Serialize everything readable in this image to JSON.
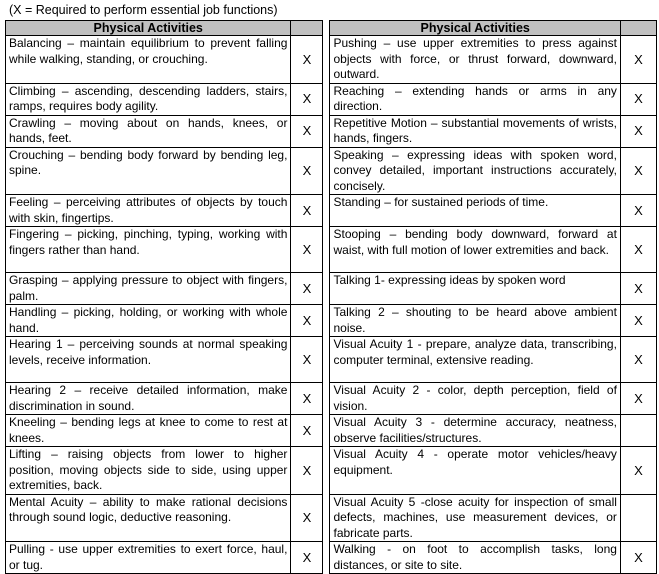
{
  "note": "(X = Required to perform essential job functions)",
  "header": {
    "left": "Physical Activities",
    "right": "Physical Activities"
  },
  "rows": [
    {
      "l": "Balancing – maintain equilibrium to prevent falling while walking, standing, or crouching.",
      "lx": "X",
      "r": "Pushing – use upper extremities to press against objects with force, or thrust forward, downward, outward.",
      "rx": "X"
    },
    {
      "l": "Climbing – ascending, descending ladders, stairs, ramps, requires body agility.",
      "lx": "X",
      "r": "Reaching – extending hands or arms in any direction.",
      "rx": "X"
    },
    {
      "l": "Crawling – moving about on hands, knees, or hands, feet.",
      "lx": "X",
      "r": "Repetitive Motion – substantial movements of wrists, hands, fingers.",
      "rx": "X"
    },
    {
      "l": "Crouching – bending body forward by bending leg, spine.",
      "lx": "X",
      "r": "Speaking – expressing ideas with spoken word, convey detailed, important instructions accurately, concisely.",
      "rx": "X"
    },
    {
      "l": "Feeling – perceiving attributes of objects by touch with skin, fingertips.",
      "lx": "X",
      "r": "Standing – for sustained periods of time.",
      "rx": "X"
    },
    {
      "l": "Fingering – picking, pinching, typing, working with fingers rather than hand.",
      "lx": "X",
      "r": "Stooping – bending body downward, forward at waist, with full motion of lower extremities and back.",
      "rx": "X"
    },
    {
      "l": "Grasping – applying pressure to object with fingers, palm.",
      "lx": "X",
      "r": "Talking 1- expressing ideas by spoken word",
      "rx": "X"
    },
    {
      "l": "Handling – picking, holding, or working with whole hand.",
      "lx": "X",
      "r": "Talking 2 – shouting to be heard above ambient noise.",
      "rx": "X"
    },
    {
      "l": "Hearing 1 – perceiving sounds at normal speaking levels, receive information.",
      "lx": "X",
      "r": "Visual Acuity 1 - prepare, analyze data, transcribing, computer terminal, extensive reading.",
      "rx": "X"
    },
    {
      "l": "Hearing 2 – receive detailed information, make discrimination in sound.",
      "lx": "X",
      "r": "Visual Acuity 2 - color, depth perception, field of vision.",
      "rx": "X"
    },
    {
      "l": "Kneeling – bending legs at knee to come to rest at knees.",
      "lx": "X",
      "r": "Visual Acuity 3 - determine accuracy, neatness, observe facilities/structures.",
      "rx": ""
    },
    {
      "l": "Lifting – raising objects from lower to higher position, moving objects side to side, using upper extremities, back.",
      "lx": "X",
      "r": "Visual Acuity 4 - operate motor vehicles/heavy equipment.",
      "rx": "X"
    },
    {
      "l": "Mental Acuity – ability to make rational decisions through sound logic, deductive reasoning.",
      "lx": "X",
      "r": "Visual Acuity 5 -close acuity for inspection of small defects, machines, use measurement devices, or fabricate parts.",
      "rx": ""
    },
    {
      "l": "Pulling - use upper extremities to exert force, haul, or tug.",
      "lx": "X",
      "r": "Walking - on foot to accomplish tasks, long distances, or site to site.",
      "rx": "X"
    }
  ]
}
